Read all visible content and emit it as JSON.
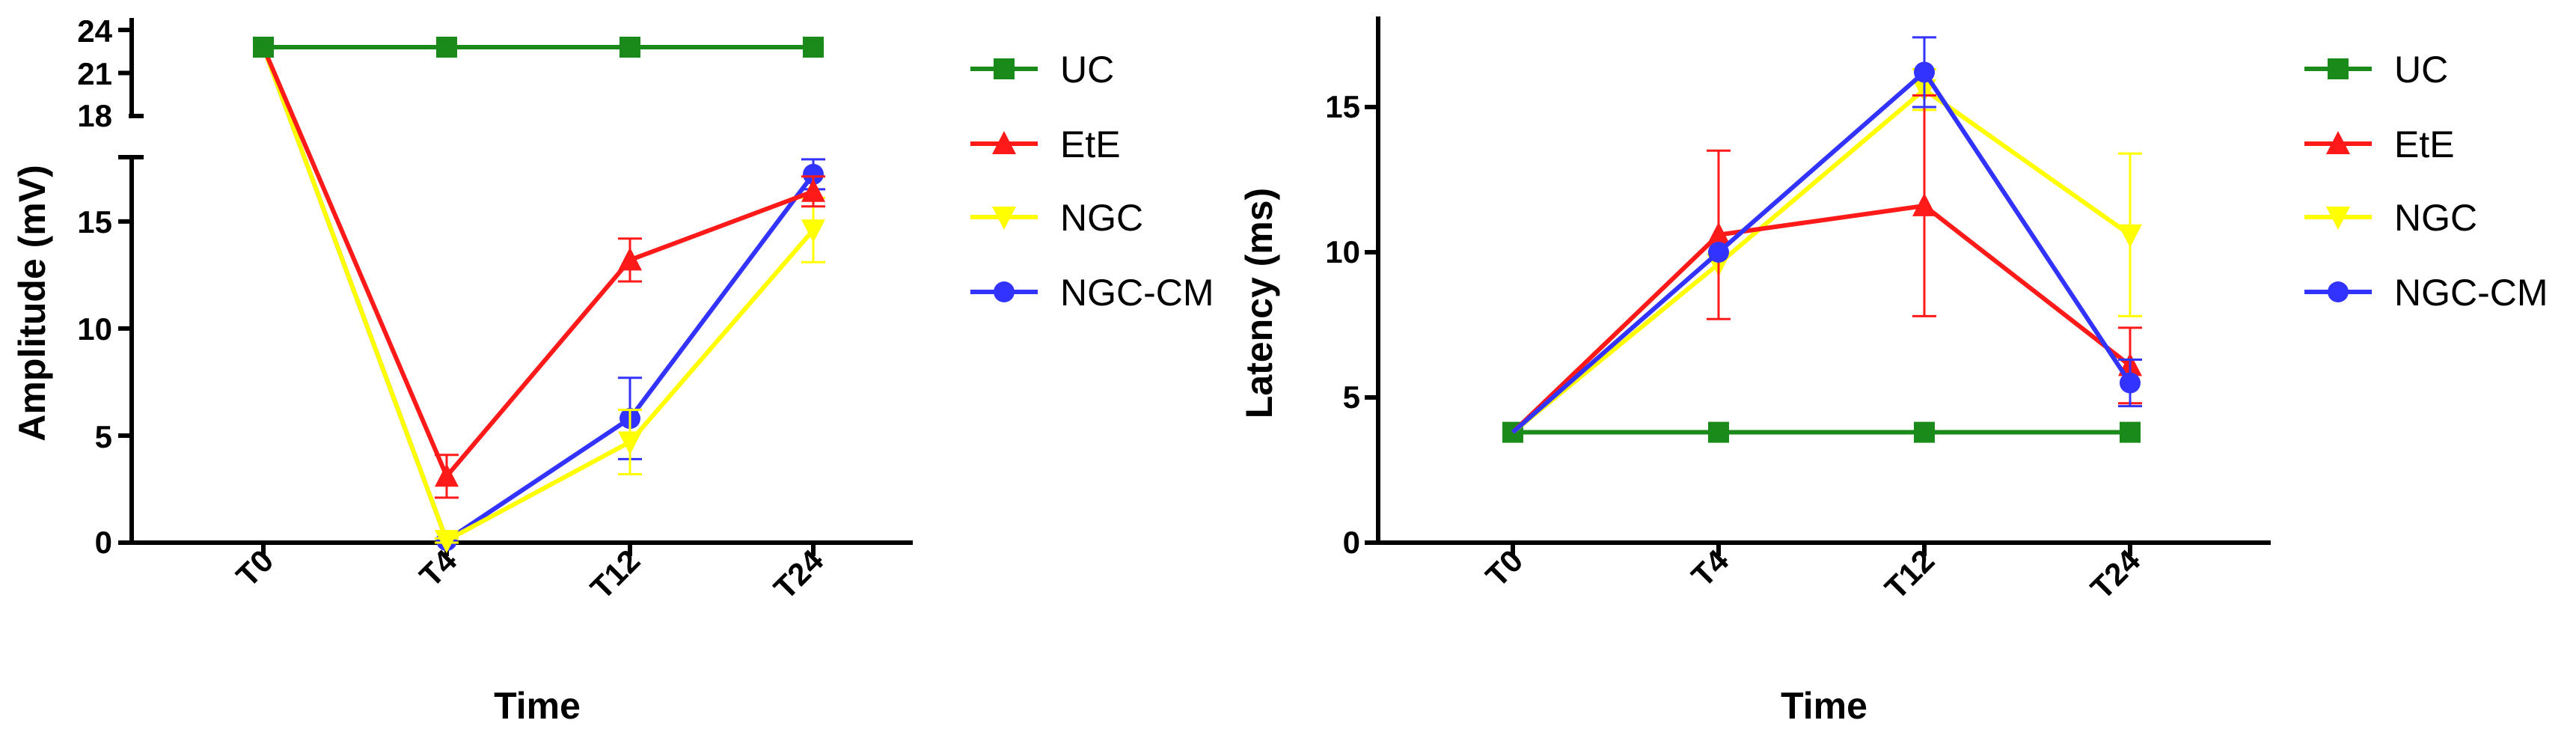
{
  "colors": {
    "UC": "#1a8a1a",
    "EtE": "#ff1a1a",
    "NGC": "#ffff00",
    "NGC-CM": "#3333ff"
  },
  "chart_data": [
    {
      "type": "line",
      "title": "",
      "xlabel": "Time",
      "ylabel": "Amplitude (mV)",
      "categories": [
        "T0",
        "T4",
        "T12",
        "T24"
      ],
      "y_axis_segments": [
        {
          "range": [
            0,
            18
          ],
          "ticks": [
            "0",
            "5",
            "10",
            "15"
          ]
        },
        {
          "range": [
            18,
            24
          ],
          "ticks": [
            "18",
            "21",
            "24"
          ]
        }
      ],
      "series": [
        {
          "name": "UC",
          "marker": "square",
          "values": [
            22.8,
            22.8,
            22.8,
            22.8
          ],
          "errors": [
            0,
            0,
            0,
            0
          ]
        },
        {
          "name": "EtE",
          "marker": "triangle-up",
          "values": [
            22.8,
            3.1,
            13.2,
            16.4
          ],
          "errors": [
            0,
            1.0,
            1.0,
            0.7
          ]
        },
        {
          "name": "NGC",
          "marker": "triangle-down",
          "values": [
            22.8,
            0.1,
            4.7,
            14.6
          ],
          "errors": [
            0,
            0.1,
            1.5,
            1.5
          ]
        },
        {
          "name": "NGC-CM",
          "marker": "circle",
          "values": [
            22.8,
            0.1,
            5.8,
            17.2
          ],
          "errors": [
            0,
            0.1,
            1.9,
            0.7
          ]
        }
      ],
      "legend": "right"
    },
    {
      "type": "line",
      "title": "",
      "xlabel": "Time",
      "ylabel": "Latency (ms)",
      "categories": [
        "T0",
        "T4",
        "T12",
        "T24"
      ],
      "ylim": [
        0,
        18
      ],
      "y_ticks": [
        "0",
        "5",
        "10",
        "15"
      ],
      "series": [
        {
          "name": "UC",
          "marker": "square",
          "values": [
            3.8,
            3.8,
            3.8,
            3.8
          ],
          "errors": [
            0,
            0,
            0,
            0
          ]
        },
        {
          "name": "EtE",
          "marker": "triangle-up",
          "values": [
            3.8,
            10.6,
            11.6,
            6.1
          ],
          "errors": [
            0,
            2.9,
            3.8,
            1.3
          ]
        },
        {
          "name": "NGC",
          "marker": "triangle-down",
          "values": [
            3.8,
            9.6,
            15.6,
            10.6
          ],
          "errors": [
            0,
            0,
            0.7,
            2.8
          ]
        },
        {
          "name": "NGC-CM",
          "marker": "circle",
          "values": [
            3.8,
            10.0,
            16.2,
            5.5
          ],
          "errors": [
            0,
            0,
            1.2,
            0.8
          ]
        }
      ],
      "legend": "right"
    }
  ]
}
